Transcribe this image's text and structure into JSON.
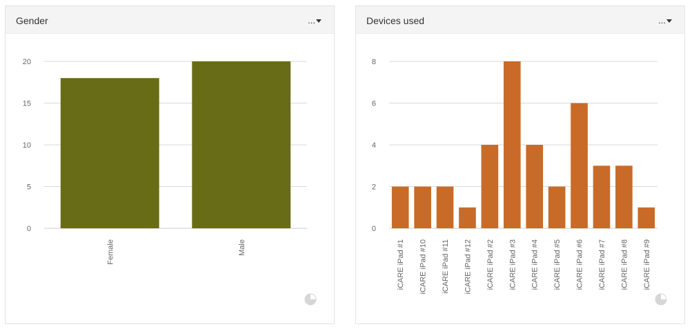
{
  "panels": [
    {
      "title": "Gender",
      "menu_label": "...",
      "icons": {
        "menu": "caret-down-icon",
        "chart_toggle": "pie-chart-icon"
      },
      "chart_data": {
        "type": "bar",
        "categories": [
          "Female",
          "Male"
        ],
        "values": [
          18,
          20
        ],
        "color": "#696c16",
        "ylim": [
          0,
          20
        ],
        "yticks": [
          0,
          5,
          10,
          15,
          20
        ],
        "grid": true,
        "title": "",
        "xlabel": "",
        "ylabel": ""
      }
    },
    {
      "title": "Devices used",
      "menu_label": "...",
      "icons": {
        "menu": "caret-down-icon",
        "chart_toggle": "pie-chart-icon"
      },
      "chart_data": {
        "type": "bar",
        "categories": [
          "iCARE iPad #1",
          "iCARE iPad #10",
          "iCARE iPad #11",
          "iCARE iPad #12",
          "iCARE iPad #2",
          "iCARE iPad #3",
          "iCARE iPad #4",
          "iCARE iPad #5",
          "iCARE iPad #6",
          "iCARE iPad #7",
          "iCARE iPad #8",
          "iCARE iPad #9"
        ],
        "values": [
          2,
          2,
          2,
          1,
          4,
          8,
          4,
          2,
          6,
          3,
          3,
          1
        ],
        "color": "#c86b28",
        "ylim": [
          0,
          8
        ],
        "yticks": [
          0,
          2,
          4,
          6,
          8
        ],
        "grid": true,
        "title": "",
        "xlabel": "",
        "ylabel": ""
      }
    }
  ]
}
